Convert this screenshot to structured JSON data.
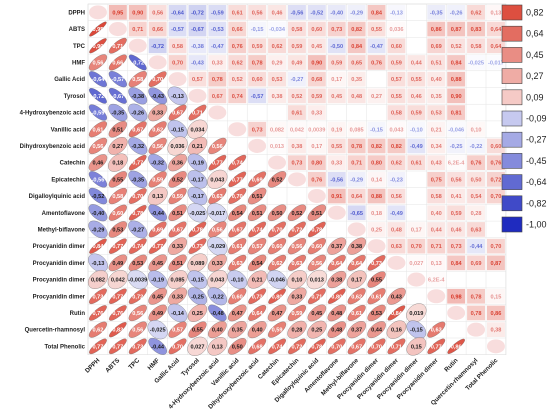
{
  "chart_data": {
    "type": "heatmap",
    "title": "",
    "variables": [
      "DPPH",
      "ABTS",
      "TPC",
      "HMF",
      "Gallic Acid",
      "Tyrosol",
      "4-Hydroxybenzoic acid",
      "Vanillic acid",
      "Dihydroxybenzoic acid",
      "Catechin",
      "Epicatechin",
      "Digalloylquinic acid",
      "Amentoflavone",
      "Methyl-biflavone",
      "Procyanidin dimer",
      "Procyanidin dimer",
      "Procyanidin dimer",
      "Procyanidin dimer",
      "Rutin",
      "Quercetin-rhamnosyl",
      "Total Phenolic"
    ],
    "upper_triangle_labels": [
      [
        "0,95",
        "0,90",
        "0,56",
        "-0,64",
        "-0,72",
        "-0,59",
        "0,61",
        "0,56",
        "0,46",
        "-0,56",
        "-0,52",
        "-0,40",
        "-0,29",
        "0,84",
        "-0,13",
        "",
        "-0,35",
        "-0,26",
        "0,62",
        "0,13"
      ],
      [
        "0,71",
        "0,66",
        "-0,57",
        "-0,67",
        "-0,53",
        "0,66",
        "-0,15",
        "-0,034",
        "0,58",
        "0,60",
        "0,73",
        "0,82",
        "0,55",
        "0,036",
        "",
        "0,86",
        "0,87",
        "0,83",
        "0,64"
      ],
      [
        "-0,72",
        "0,58",
        "-0,38",
        "-0,47",
        "0,76",
        "0,59",
        "0,62",
        "0,59",
        "0,45",
        "-0,50",
        "0,84",
        "-0,47",
        "0,60",
        "",
        "0,69",
        "0,52",
        "0,58",
        "0,64"
      ],
      [
        "0,70",
        "-0,43",
        "0,33",
        "0,62",
        "0,78",
        "0,29",
        "0,49",
        "0,90",
        "0,59",
        "0,65",
        "0,76",
        "0,59",
        "0,44",
        "0,51",
        "0,84",
        "-0,025",
        "-0,017",
        "0,90"
      ],
      [
        "0,57",
        "0,78",
        "0,52",
        "0,60",
        "0,53",
        "-0,27",
        "0,68",
        "0,17",
        "0,35",
        "",
        "0,57",
        "0,55",
        "0,40",
        "0,88"
      ],
      [
        "0,67",
        "0,74",
        "-0,57",
        "0,38",
        "0,52",
        "0,59",
        "0,45",
        "0,48",
        "0,27",
        "0,55",
        "0,46",
        "0,35",
        "0,90"
      ],
      [
        "",
        "",
        "",
        "0,61",
        "0,33",
        "",
        "",
        "",
        "0,58",
        "0,59",
        "0,53",
        "0,81"
      ],
      [
        "0,73",
        "0,082",
        "0,042",
        "0,0039",
        "0,19",
        "0,085",
        "-0,15",
        "0,043",
        "-0,10",
        "0,21",
        "-0,046",
        "0,10"
      ],
      [
        "0,013",
        "0,38",
        "0,17",
        "0,55",
        "0,78",
        "0,82",
        "0,82",
        "-0,49",
        "0,34",
        "-0,25",
        "-0,22",
        "0,60"
      ],
      [
        "0,73",
        "0,80",
        "0,33",
        "0,71",
        "0,80",
        "0,62",
        "0,61",
        "0,43",
        "6,2E-4",
        "0,76",
        "0,76"
      ],
      [
        "0,76",
        "-0,56",
        "-0,29",
        "0,14",
        "-0,23",
        "",
        "0,75",
        "0,56",
        "0,50",
        "0,72"
      ],
      [
        "0,91",
        "0,64",
        "0,88",
        "0,56",
        "",
        "0,58",
        "0,41",
        "0,54",
        "0,70"
      ],
      [
        "-0,65",
        "0,18",
        "-0,49",
        "",
        "0,40",
        "0,59",
        "0,28"
      ],
      [
        "0,25",
        "0,48",
        "0,17",
        "0,44",
        "0,46",
        "0,63"
      ],
      [
        "0,63",
        "0,70",
        "0,71",
        "0,73",
        "-0,44",
        "0,70"
      ],
      [
        "0,027",
        "0,13",
        "0,84",
        "0,69",
        "0,87"
      ],
      [
        "6,2E-4",
        "",
        "",
        "",
        "0,71"
      ],
      [
        "0,98",
        "0,78",
        "0,15"
      ],
      [
        "0,78",
        "0,86"
      ],
      [
        "0,38"
      ],
      []
    ],
    "lower_triangle_labels": [
      [],
      [
        "0,95"
      ],
      [
        "0,90",
        "0,71"
      ],
      [
        "0,56",
        "0,66",
        "-0,72"
      ],
      [
        "-0,64",
        "-0,57",
        "0,58",
        "0,70"
      ],
      [
        "-0,72",
        "-0,67",
        "-0,38",
        "-0,43",
        "-0,13"
      ],
      [
        "-0,59",
        "-0,35",
        "-0,26",
        "0,33",
        "0,67",
        "0,71"
      ],
      [
        "0,61",
        "0,51",
        "0,67",
        "0,62",
        "-0,15",
        "0,034"
      ],
      [
        "0,56",
        "0,27",
        "-0,32",
        "0,56",
        "0,036",
        "0,21",
        "0,56"
      ],
      [
        "0,46",
        "0,18",
        "0,77",
        "-0,32",
        "0,36",
        "-0,19",
        "0,77",
        "0,74"
      ],
      [
        "-0,56",
        "0,55",
        "-0,35",
        "0,59",
        "0,52",
        "-0,17",
        "0,043",
        "0,77",
        "0,69",
        "0,52"
      ],
      [
        "-0,52",
        "0,58",
        "0,70",
        "0,13",
        "0,59",
        "-0,17",
        "0,63",
        "0,70",
        "0,51"
      ],
      [
        "-0,40",
        "0,60",
        "0,78",
        "-0,44",
        "0,51",
        "-0,025",
        "-0,017",
        "0,54",
        "0,51",
        "0,50",
        "0,52",
        "0,51"
      ],
      [
        "-0,29",
        "0,53",
        "-0,27",
        "0,69",
        "0,67",
        "0,78",
        "0,56",
        "0,67",
        "0,74",
        "0,70",
        "0,72",
        "0,78"
      ],
      [
        "0,84",
        "0,77",
        "0,74",
        "0,77",
        "0,33",
        "0,73",
        "-0,029",
        "0,61",
        "0,57",
        "0,60",
        "0,56",
        "0,60",
        "0,37",
        "0,38"
      ],
      [
        "-0,13",
        "0,49",
        "0,53",
        "0,45",
        "0,51",
        "0,089",
        "0,33",
        "0,63",
        "0,54",
        "0,62",
        "0,63",
        "0,56",
        "0,64",
        "0,64",
        "0,73"
      ],
      [
        "0,082",
        "0,042",
        "-0,0039",
        "-0,19",
        "0,085",
        "-0,15",
        "0,043",
        "-0,10",
        "0,21",
        "-0,046",
        "0,10",
        "0,013",
        "0,38",
        "0,17",
        "0,55"
      ],
      [
        "0,73",
        "0,77",
        "0,72",
        "0,45",
        "0,33",
        "-0,25",
        "-0,22",
        "0,60",
        "0,73",
        "0,80",
        "0,33",
        "0,71",
        "0,80",
        "0,62",
        "0,61",
        "0,43"
      ],
      [
        "0,76",
        "0,76",
        "0,56",
        "0,49",
        "-0,14",
        "0,25",
        "-0,48",
        "0,47",
        "0,64",
        "0,47",
        "0,59",
        "0,45",
        "0,48",
        "0,61",
        "0,53",
        "0,84",
        "0,019"
      ],
      [
        "0,62",
        "0,83",
        "0,56",
        "-0,025",
        "0,57",
        "0,55",
        "0,40",
        "0,35",
        "0,40",
        "0,59",
        "0,28",
        "0,25",
        "0,48",
        "0,37",
        "0,44",
        "0,16",
        "-0,15",
        "0,63"
      ],
      [
        "0,77",
        "0,77",
        "0,73",
        "-0,44",
        "0,70",
        "0,027",
        "0,13",
        "0,50",
        "0,68",
        "0,74",
        "0,72",
        "0,78",
        "0,70",
        "0,67",
        "0,70",
        "0,71",
        "0,15",
        "0,77",
        "0,86"
      ]
    ],
    "colorbar": {
      "ticks": [
        "0,82",
        "0,64",
        "0,45",
        "0,27",
        "0,09",
        "-0,09",
        "-0,27",
        "-0,45",
        "-0,64",
        "-0,82",
        "-1,00"
      ]
    },
    "colors": {
      "positive": "#d7301f",
      "negative": "#1f2bbf"
    }
  }
}
